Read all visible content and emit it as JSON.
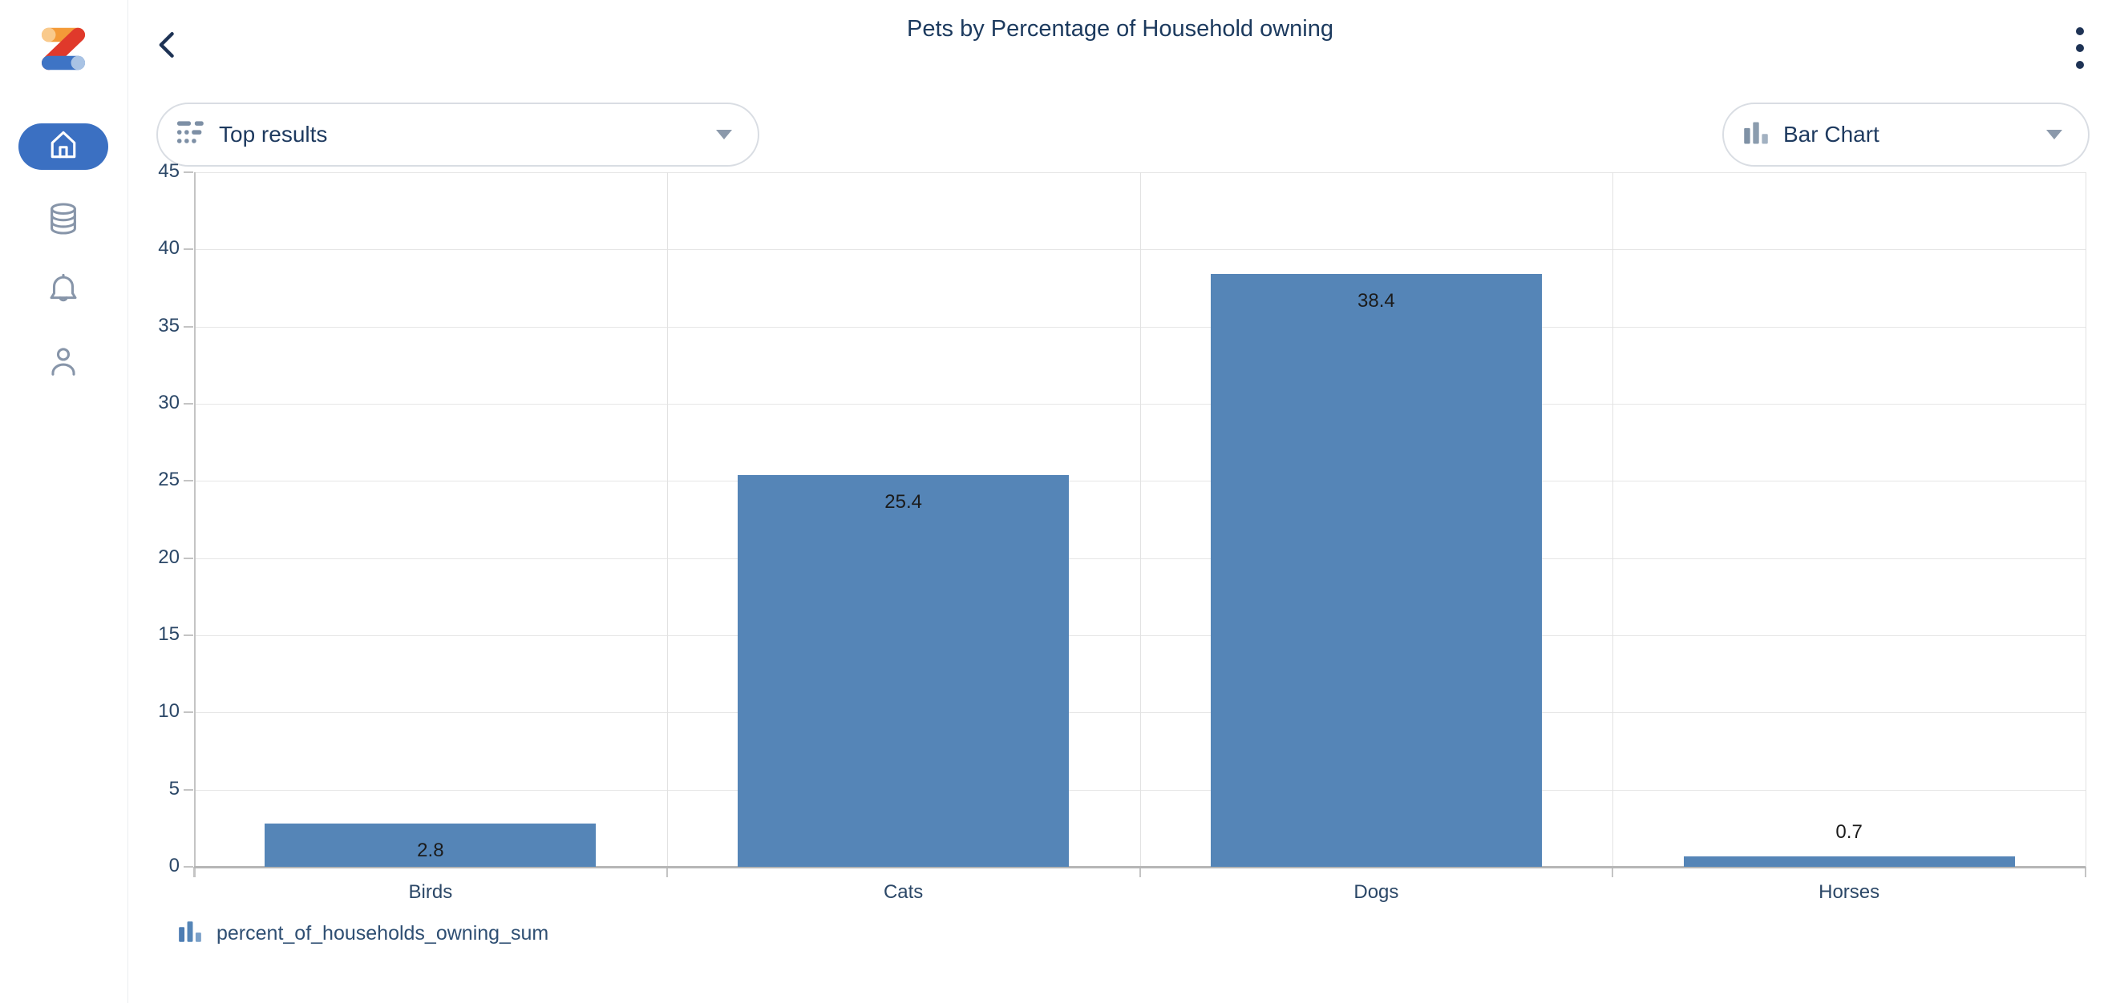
{
  "app": {
    "name": "analytics-dashboard",
    "accent_color": "#3b70c2",
    "bar_color": "#5585b7"
  },
  "sidebar": {
    "logo_icon": "zoho-logo",
    "items": [
      {
        "id": "home",
        "icon": "home-icon",
        "active": true
      },
      {
        "id": "data",
        "icon": "database-icon",
        "active": false
      },
      {
        "id": "notifications",
        "icon": "bell-icon",
        "active": false
      },
      {
        "id": "profile",
        "icon": "user-icon",
        "active": false
      }
    ]
  },
  "header": {
    "title": "Pets by Percentage of Household owning",
    "back_icon": "chevron-left-icon",
    "menu_icon": "kebab-menu-icon"
  },
  "controls": {
    "top_results": {
      "label": "Top results",
      "icon": "top-results-icon",
      "caret": "caret-down-icon"
    },
    "chart_type": {
      "label": "Bar Chart",
      "icon": "bar-chart-icon",
      "caret": "caret-down-icon"
    }
  },
  "legend": {
    "icon": "bar-series-icon",
    "label": "percent_of_households_owning_sum"
  },
  "chart_data": {
    "type": "bar",
    "title": "Pets by Percentage of Household owning",
    "categories": [
      "Birds",
      "Cats",
      "Dogs",
      "Horses"
    ],
    "values": [
      2.8,
      25.4,
      38.4,
      0.7
    ],
    "series": [
      {
        "name": "percent_of_households_owning_sum",
        "values": [
          2.8,
          25.4,
          38.4,
          0.7
        ]
      }
    ],
    "xlabel": "",
    "ylabel": "",
    "ylim": [
      0,
      45
    ],
    "yticks": [
      0,
      5,
      10,
      15,
      20,
      25,
      30,
      35,
      40,
      45
    ],
    "grid": true,
    "bar_color": "#5585b7",
    "value_labels": true,
    "legend_position": "bottom-left"
  }
}
